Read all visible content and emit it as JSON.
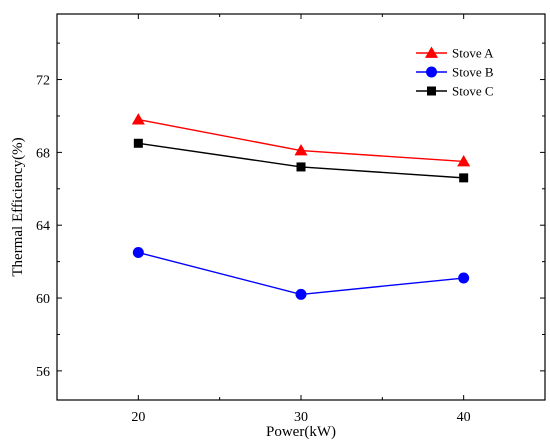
{
  "chart_data": {
    "type": "line",
    "title": "",
    "xlabel": "Power(kW)",
    "ylabel": "Thermal Efficiency(%)",
    "x": [
      20,
      30,
      40
    ],
    "xticks": [
      20,
      30,
      40
    ],
    "xlim": [
      15,
      45
    ],
    "yticks": [
      56,
      60,
      64,
      68,
      72
    ],
    "ylim": [
      54.4,
      75.6
    ],
    "grid": false,
    "legend_position": "top-right",
    "series": [
      {
        "name": "Stove A",
        "values": [
          69.8,
          68.1,
          67.5
        ],
        "color": "#ff0000",
        "marker": "triangle"
      },
      {
        "name": "Stove B",
        "values": [
          62.5,
          60.2,
          61.1
        ],
        "color": "#0000ff",
        "marker": "circle"
      },
      {
        "name": "Stove C",
        "values": [
          68.5,
          67.2,
          66.6
        ],
        "color": "#000000",
        "marker": "square"
      }
    ]
  }
}
